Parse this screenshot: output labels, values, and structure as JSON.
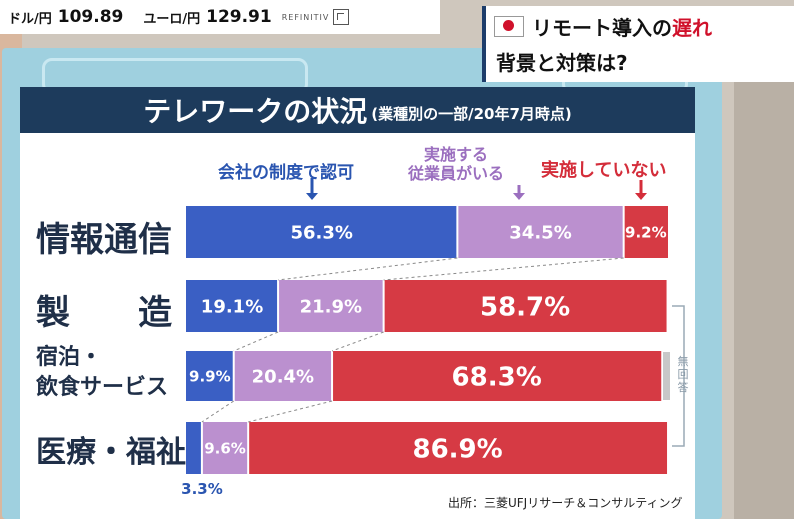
{
  "ticker": {
    "usd_label": "ドル/円",
    "usd_value": "109.89",
    "eur_label": "ユーロ/円",
    "eur_value": "129.91",
    "source": "REFINITIV"
  },
  "headline": {
    "line1_a": "リモート導入の",
    "line1_b": "遅れ",
    "line2": "背景と対策は?",
    "flag_icon": "japan-flag-icon"
  },
  "chart_data": {
    "type": "bar",
    "orientation": "horizontal",
    "stacked": true,
    "normalized": true,
    "title": "テレワークの状況",
    "subtitle": "(業種別の一部/20年7月時点)",
    "categories": [
      "情報通信",
      "製　造",
      "宿泊・飲食サービス",
      "医療・福祉"
    ],
    "series": [
      {
        "name": "会社の制度で認可",
        "color": "#3a5fc4",
        "values": [
          56.3,
          19.1,
          9.9,
          3.3
        ]
      },
      {
        "name": "実施する従業員がいる",
        "color": "#bb90cf",
        "values": [
          34.5,
          21.9,
          20.4,
          9.6
        ]
      },
      {
        "name": "実施していない",
        "color": "#d63a44",
        "values": [
          9.2,
          58.7,
          68.3,
          86.9
        ]
      }
    ],
    "value_labels": [
      [
        "56.3%",
        "34.5%",
        "9.2%"
      ],
      [
        "19.1%",
        "21.9%",
        "58.7%"
      ],
      [
        "9.9%",
        "20.4%",
        "68.3%"
      ],
      [
        "3.3%",
        "9.6%",
        "86.9%"
      ]
    ],
    "no_answer_label": "無回答",
    "source": "出所：三菱UFJリサーチ＆コンサルティング"
  },
  "labels": {
    "legend_blue": "会社の制度で認可",
    "legend_purple_1": "実施する",
    "legend_purple_2": "従業員がいる",
    "legend_red": "実施していない",
    "cat_1": "情報通信",
    "cat_2": "製　　造",
    "cat_3a": "宿泊・",
    "cat_3b": "飲食サービス",
    "cat_4": "医療・福祉"
  }
}
